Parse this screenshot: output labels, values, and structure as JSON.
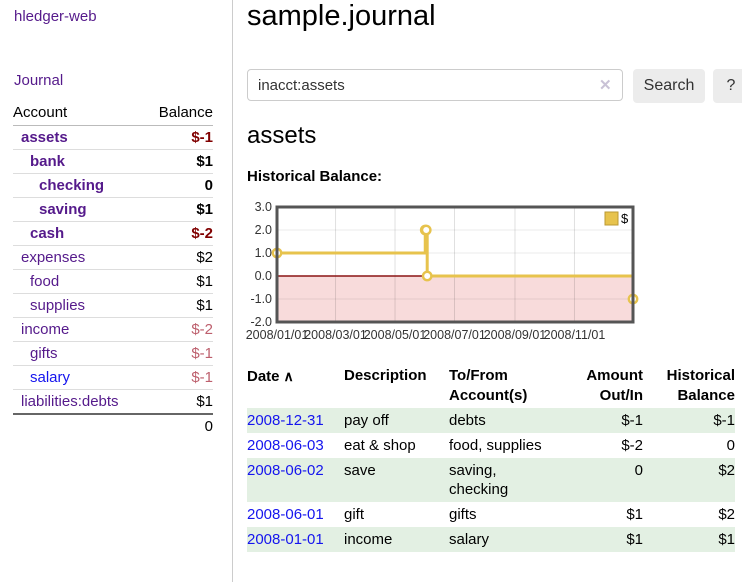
{
  "app": {
    "brand": "hledger-web",
    "nav_journal": "Journal"
  },
  "colors": {
    "link_visited": "#551A8B",
    "link_unvisited": "#1515EE",
    "negative_strong": "#800000",
    "negative_dim": "#bd5f6d",
    "row_stripe_green": "#e3f0e3",
    "chart_line_gold": "#e7c34d",
    "chart_negative_region": "#f8dbdb",
    "chart_zero_line": "#8b1414",
    "button_bg": "#ececec"
  },
  "sidebar": {
    "header": {
      "account": "Account",
      "balance": "Balance"
    },
    "accounts": [
      {
        "name": "assets",
        "level": 1,
        "bold": true,
        "link": "visited",
        "balance": "$-1",
        "balance_style": "neg-strong"
      },
      {
        "name": "bank",
        "level": 2,
        "bold": true,
        "link": "visited",
        "balance": "$1",
        "balance_style": "pos-strong"
      },
      {
        "name": "checking",
        "level": 3,
        "bold": true,
        "link": "visited",
        "balance": "0",
        "balance_style": "pos-strong"
      },
      {
        "name": "saving",
        "level": 3,
        "bold": true,
        "link": "visited",
        "balance": "$1",
        "balance_style": "pos-strong"
      },
      {
        "name": "cash",
        "level": 2,
        "bold": true,
        "link": "visited",
        "balance": "$-2",
        "balance_style": "neg-strong"
      },
      {
        "name": "expenses",
        "level": 1,
        "bold": false,
        "link": "visited",
        "balance": "$2",
        "balance_style": "pos"
      },
      {
        "name": "food",
        "level": 2,
        "bold": false,
        "link": "visited",
        "balance": "$1",
        "balance_style": "pos"
      },
      {
        "name": "supplies",
        "level": 2,
        "bold": false,
        "link": "visited",
        "balance": "$1",
        "balance_style": "pos"
      },
      {
        "name": "income",
        "level": 1,
        "bold": false,
        "link": "visited",
        "balance": "$-2",
        "balance_style": "neg-dim"
      },
      {
        "name": "gifts",
        "level": 2,
        "bold": false,
        "link": "visited",
        "balance": "$-1",
        "balance_style": "neg-dim"
      },
      {
        "name": "salary",
        "level": 2,
        "bold": false,
        "link": "unvisited",
        "balance": "$-1",
        "balance_style": "neg-dim"
      },
      {
        "name": "liabilities:debts",
        "level": 1,
        "bold": false,
        "link": "visited",
        "balance": "$1",
        "balance_style": "pos"
      }
    ],
    "total": "0"
  },
  "header": {
    "title": "sample.journal"
  },
  "search": {
    "value": "inacct:assets",
    "clear_icon": "✕",
    "button": "Search",
    "help_button": "?"
  },
  "account_page": {
    "title": "assets",
    "chart_label": "Historical Balance:"
  },
  "chart_data": {
    "type": "line",
    "title": "Historical Balance",
    "step": true,
    "series": [
      {
        "name": "$",
        "points": [
          [
            "2008-01-01",
            1
          ],
          [
            "2008-06-01",
            2
          ],
          [
            "2008-06-02",
            2
          ],
          [
            "2008-06-03",
            0
          ],
          [
            "2008-12-31",
            -1
          ]
        ]
      }
    ],
    "xrange": [
      "2008-01-01",
      "2008-12-31"
    ],
    "ylim": [
      -2,
      3
    ],
    "yticks": [
      "3.0",
      "2.0",
      "1.0",
      "0.0",
      "-1.0",
      "-2.0"
    ],
    "ytick_values": [
      3,
      2,
      1,
      0,
      -1,
      -2
    ],
    "xticks": [
      "2008/01/01",
      "2008/03/01",
      "2008/05/01",
      "2008/07/01",
      "2008/09/01",
      "2008/11/01"
    ],
    "legend_position": "top-right",
    "grid": true,
    "negative_region": true
  },
  "register": {
    "columns": [
      {
        "line1": "Date",
        "line2": "",
        "align": "left",
        "sort": "∧"
      },
      {
        "line1": "Description",
        "line2": "",
        "align": "left"
      },
      {
        "line1": "To/From",
        "line2": "Account(s)",
        "align": "left"
      },
      {
        "line1": "Amount",
        "line2": "Out/In",
        "align": "right"
      },
      {
        "line1": "Historical",
        "line2": "Balance",
        "align": "right"
      }
    ],
    "rows": [
      {
        "date": "2008-12-31",
        "description": "pay off",
        "accounts": "debts",
        "amount": "$-1",
        "amount_neg": true,
        "balance": "$-1",
        "balance_neg": true,
        "stripe": true
      },
      {
        "date": "2008-06-03",
        "description": "eat & shop",
        "accounts": "food, supplies",
        "amount": "$-2",
        "amount_neg": true,
        "balance": "0",
        "balance_neg": false,
        "stripe": false
      },
      {
        "date": "2008-06-02",
        "description": "save",
        "accounts": "saving, checking",
        "amount": "0",
        "amount_neg": false,
        "balance": "$2",
        "balance_neg": false,
        "stripe": true
      },
      {
        "date": "2008-06-01",
        "description": "gift",
        "accounts": "gifts",
        "amount": "$1",
        "amount_neg": false,
        "balance": "$2",
        "balance_neg": false,
        "stripe": false
      },
      {
        "date": "2008-01-01",
        "description": "income",
        "accounts": "salary",
        "amount": "$1",
        "amount_neg": false,
        "balance": "$1",
        "balance_neg": false,
        "stripe": true
      }
    ]
  }
}
